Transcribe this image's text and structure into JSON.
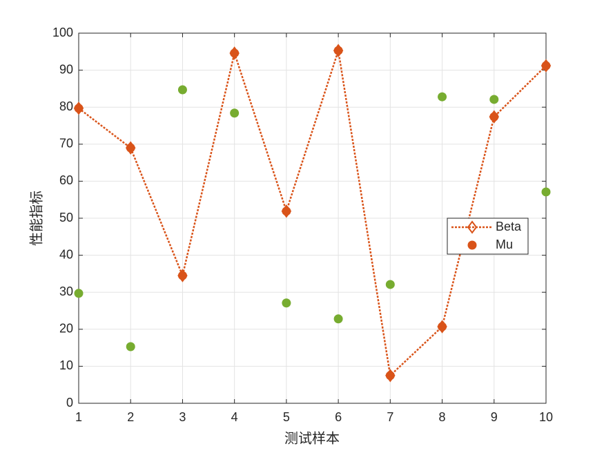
{
  "chart_data": {
    "type": "line",
    "xlabel": "测试样本",
    "ylabel": "性能指标",
    "x": [
      1,
      2,
      3,
      4,
      5,
      6,
      7,
      8,
      9,
      10
    ],
    "series": [
      {
        "name": "Beta",
        "color": "#D95319",
        "marker": "diamond",
        "line": "dotted",
        "values": [
          79.7,
          69.0,
          34.5,
          94.6,
          51.9,
          95.3,
          7.5,
          20.7,
          77.4,
          91.2
        ]
      },
      {
        "name": "Mu",
        "color": "#D95319",
        "marker": "circle",
        "line": "none",
        "values": [
          79.7,
          69.0,
          34.5,
          94.6,
          51.9,
          95.3,
          7.5,
          20.7,
          77.4,
          91.2
        ]
      },
      {
        "color": "#77AC30",
        "marker": "circle",
        "line": "none",
        "values": [
          29.7,
          15.3,
          84.7,
          78.4,
          27.1,
          22.8,
          32.1,
          82.8,
          82.1,
          57.1
        ]
      }
    ],
    "xlim": [
      1,
      10
    ],
    "xticks": [
      1,
      2,
      3,
      4,
      5,
      6,
      7,
      8,
      9,
      10
    ],
    "ylim": [
      0,
      100
    ],
    "yticks": [
      0,
      10,
      20,
      30,
      40,
      50,
      60,
      70,
      80,
      90,
      100
    ],
    "grid": true,
    "legend": "east"
  }
}
